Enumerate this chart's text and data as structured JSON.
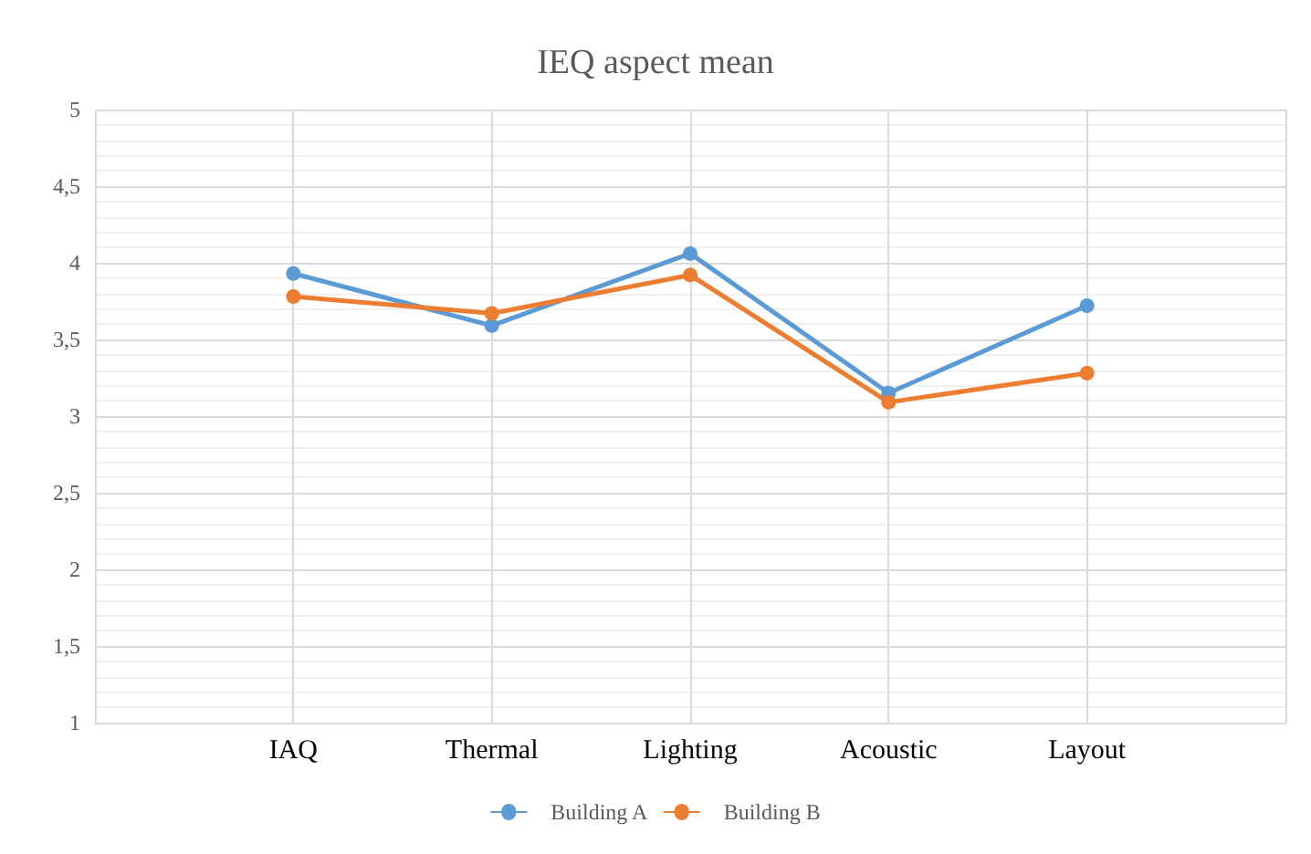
{
  "chart_data": {
    "type": "line",
    "title": "IEQ aspect mean",
    "categories": [
      null,
      "IAQ",
      "Thermal",
      "Lighting",
      "Acoustic",
      "Layout",
      null
    ],
    "series": [
      {
        "name": "Building A",
        "color": "#5b9bd5",
        "values": [
          null,
          3.93,
          3.59,
          4.06,
          3.15,
          3.72,
          null
        ]
      },
      {
        "name": "Building B",
        "color": "#ed7d31",
        "values": [
          null,
          3.78,
          3.67,
          3.92,
          3.09,
          3.28,
          null
        ]
      }
    ],
    "ylim": [
      1,
      5
    ],
    "yticks": [
      1,
      {
        "value": 1.5,
        "label": "1,5"
      },
      2,
      {
        "value": 2.5,
        "label": "2,5"
      },
      3,
      {
        "value": 3.5,
        "label": "3,5"
      },
      4,
      {
        "value": 4.5,
        "label": "4,5"
      },
      5
    ],
    "grid": true,
    "legend": "bottom",
    "marker": "circle",
    "line_style": "solid"
  }
}
